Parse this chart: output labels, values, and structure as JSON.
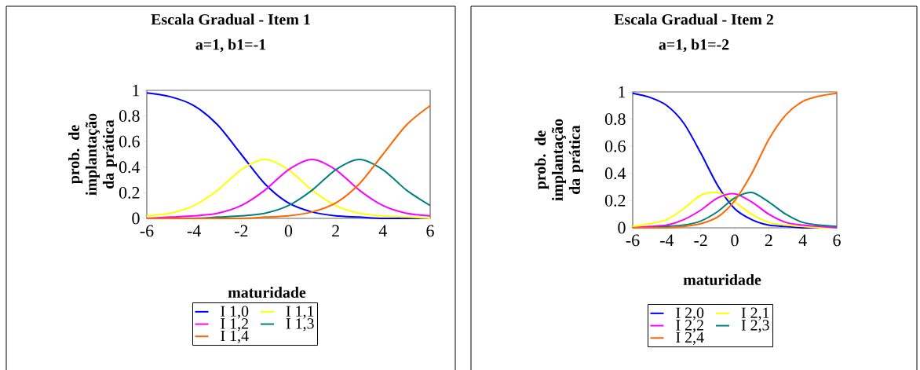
{
  "chart_data": [
    {
      "type": "line",
      "title": "Escala Gradual - Item 1",
      "subtitle": "a=1, b1=-1",
      "xlabel": "maturidade",
      "ylabel": "prob. de implantação da prática",
      "x": [
        -6,
        -5,
        -4,
        -3,
        -2,
        -1,
        0,
        1,
        2,
        3,
        4,
        5,
        6
      ],
      "series": [
        {
          "name": "I 1,0",
          "color": "#0000ff",
          "values": [
            0.98,
            0.95,
            0.88,
            0.73,
            0.5,
            0.27,
            0.12,
            0.05,
            0.02,
            0.01,
            0.0,
            0.0,
            0.0
          ]
        },
        {
          "name": "I 1,1",
          "color": "#ffff00",
          "values": [
            0.02,
            0.04,
            0.1,
            0.22,
            0.38,
            0.46,
            0.38,
            0.22,
            0.1,
            0.04,
            0.02,
            0.01,
            0.0
          ]
        },
        {
          "name": "I 1,2",
          "color": "#ff00ff",
          "values": [
            0.0,
            0.01,
            0.02,
            0.04,
            0.1,
            0.22,
            0.38,
            0.46,
            0.38,
            0.22,
            0.1,
            0.04,
            0.02
          ]
        },
        {
          "name": "I 1,3",
          "color": "#008080",
          "values": [
            0.0,
            0.0,
            0.0,
            0.01,
            0.02,
            0.04,
            0.1,
            0.22,
            0.38,
            0.46,
            0.38,
            0.22,
            0.1
          ]
        },
        {
          "name": "I 1,4",
          "color": "#ff6600",
          "values": [
            0.0,
            0.0,
            0.0,
            0.0,
            0.0,
            0.01,
            0.02,
            0.05,
            0.12,
            0.27,
            0.5,
            0.73,
            0.88
          ]
        }
      ],
      "xlim": [
        -6,
        6
      ],
      "ylim": [
        0,
        1
      ],
      "xticks": [
        -6,
        -4,
        -2,
        0,
        2,
        4,
        6
      ],
      "yticks": [
        0,
        0.2,
        0.4,
        0.6,
        0.8,
        1
      ],
      "legend": "bottom"
    },
    {
      "type": "line",
      "title": "Escala Gradual - Item 2",
      "subtitle": "a=1, b1=-2",
      "xlabel": "maturidade",
      "ylabel": "prob. de implantação da prática",
      "x": [
        -6,
        -5,
        -4,
        -3,
        -2,
        -1,
        0,
        1,
        2,
        3,
        4,
        5,
        6
      ],
      "series": [
        {
          "name": "I 2,0",
          "color": "#0000ff",
          "values": [
            0.99,
            0.96,
            0.9,
            0.77,
            0.55,
            0.31,
            0.14,
            0.06,
            0.02,
            0.01,
            0.0,
            0.0,
            0.0
          ]
        },
        {
          "name": "I 2,1",
          "color": "#ffff00",
          "values": [
            0.01,
            0.03,
            0.06,
            0.14,
            0.24,
            0.26,
            0.19,
            0.1,
            0.04,
            0.02,
            0.01,
            0.0,
            0.0
          ]
        },
        {
          "name": "I 2,2",
          "color": "#ff00ff",
          "values": [
            0.0,
            0.01,
            0.02,
            0.06,
            0.13,
            0.22,
            0.25,
            0.19,
            0.1,
            0.04,
            0.02,
            0.01,
            0.0
          ]
        },
        {
          "name": "I 2,3",
          "color": "#008080",
          "values": [
            0.0,
            0.0,
            0.01,
            0.02,
            0.05,
            0.12,
            0.22,
            0.26,
            0.19,
            0.1,
            0.04,
            0.02,
            0.01
          ]
        },
        {
          "name": "I 2,4",
          "color": "#ff6600",
          "values": [
            0.0,
            0.0,
            0.0,
            0.01,
            0.03,
            0.08,
            0.2,
            0.4,
            0.65,
            0.83,
            0.93,
            0.97,
            0.99
          ]
        }
      ],
      "xlim": [
        -6,
        6
      ],
      "ylim": [
        0,
        1
      ],
      "xticks": [
        -6,
        -4,
        -2,
        0,
        2,
        4,
        6
      ],
      "yticks": [
        0,
        0.2,
        0.4,
        0.6,
        0.8,
        1
      ],
      "legend": "bottom"
    }
  ]
}
